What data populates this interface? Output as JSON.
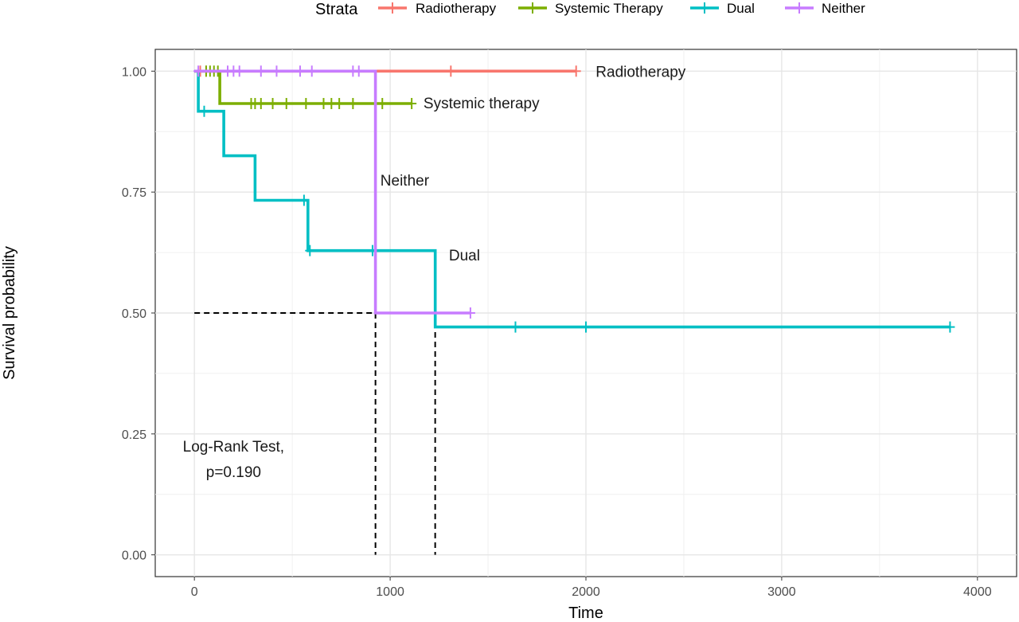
{
  "chart_data": {
    "type": "line",
    "subtype": "kaplan-meier step",
    "xlabel": "Time",
    "ylabel": "Survival probability",
    "xlim": [
      -200,
      4200
    ],
    "ylim": [
      -0.045,
      1.045
    ],
    "x_ticks": [
      0,
      1000,
      2000,
      3000,
      4000
    ],
    "x_tick_labels": [
      "0",
      "1000",
      "2000",
      "3000",
      "4000"
    ],
    "y_ticks": [
      0,
      0.25,
      0.5,
      0.75,
      1.0
    ],
    "y_tick_labels": [
      "0.00",
      "0.25",
      "0.50",
      "0.75",
      "1.00"
    ],
    "grid": true,
    "legend": {
      "title": "Strata",
      "placement": "top",
      "entries": [
        "Radiotherapy",
        "Systemic Therapy",
        "Dual",
        "Neither"
      ]
    },
    "series": [
      {
        "name": "Radiotherapy",
        "color": "#F8766D",
        "steps": [
          [
            0,
            1.0
          ],
          [
            1950,
            1.0
          ]
        ],
        "censors": [
          [
            30,
            1.0
          ],
          [
            60,
            1.0
          ],
          [
            1310,
            1.0
          ],
          [
            1950,
            1.0
          ]
        ],
        "label": "Radiotherapy",
        "label_at": [
          2050,
          1.0
        ]
      },
      {
        "name": "Systemic Therapy",
        "color": "#7CAE00",
        "steps": [
          [
            0,
            1.0
          ],
          [
            130,
            1.0
          ],
          [
            130,
            0.933
          ],
          [
            1110,
            0.933
          ]
        ],
        "censors": [
          [
            60,
            1.0
          ],
          [
            80,
            1.0
          ],
          [
            100,
            1.0
          ],
          [
            120,
            1.0
          ],
          [
            290,
            0.933
          ],
          [
            310,
            0.933
          ],
          [
            340,
            0.933
          ],
          [
            400,
            0.933
          ],
          [
            470,
            0.933
          ],
          [
            570,
            0.933
          ],
          [
            660,
            0.933
          ],
          [
            700,
            0.933
          ],
          [
            740,
            0.933
          ],
          [
            810,
            0.933
          ],
          [
            960,
            0.933
          ],
          [
            1110,
            0.933
          ]
        ],
        "label": "Systemic therapy",
        "label_at": [
          1170,
          0.935
        ]
      },
      {
        "name": "Dual",
        "color": "#00BFC4",
        "steps": [
          [
            0,
            1.0
          ],
          [
            20,
            1.0
          ],
          [
            20,
            0.917
          ],
          [
            150,
            0.917
          ],
          [
            150,
            0.825
          ],
          [
            310,
            0.825
          ],
          [
            310,
            0.733
          ],
          [
            580,
            0.733
          ],
          [
            580,
            0.629
          ],
          [
            1230,
            0.629
          ],
          [
            1230,
            0.471
          ],
          [
            3860,
            0.471
          ]
        ],
        "censors": [
          [
            50,
            0.917
          ],
          [
            560,
            0.733
          ],
          [
            590,
            0.629
          ],
          [
            910,
            0.629
          ],
          [
            1640,
            0.471
          ],
          [
            2000,
            0.471
          ],
          [
            3860,
            0.471
          ]
        ],
        "label": "Dual",
        "label_at": [
          1300,
          0.62
        ]
      },
      {
        "name": "Neither",
        "color": "#C77CFF",
        "steps": [
          [
            0,
            1.0
          ],
          [
            925,
            1.0
          ],
          [
            925,
            0.5
          ],
          [
            1410,
            0.5
          ]
        ],
        "censors": [
          [
            20,
            1.0
          ],
          [
            170,
            1.0
          ],
          [
            200,
            1.0
          ],
          [
            230,
            1.0
          ],
          [
            340,
            1.0
          ],
          [
            420,
            1.0
          ],
          [
            540,
            1.0
          ],
          [
            600,
            1.0
          ],
          [
            810,
            1.0
          ],
          [
            840,
            1.0
          ],
          [
            1410,
            0.5
          ]
        ],
        "label": "Neither",
        "label_at": [
          950,
          0.775
        ]
      }
    ],
    "median_lines": [
      {
        "x": 925,
        "y": 0.5
      },
      {
        "x": 1230,
        "y": 0.5
      }
    ],
    "annotation": {
      "line1": "Log-Rank Test,",
      "line2": "p=0.190",
      "at": [
        200,
        0.225
      ]
    }
  }
}
